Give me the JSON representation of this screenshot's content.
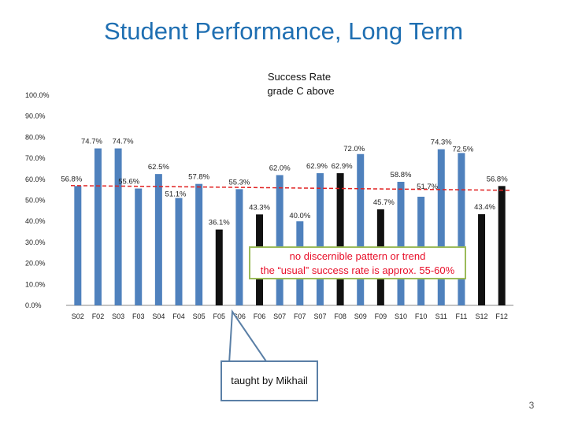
{
  "slide_title": "Student Performance, Long Term",
  "page_number": "3",
  "note": {
    "line1": "no discernible pattern or trend",
    "line2": "the “usual” success rate is approx. 55-60%"
  },
  "callout": "taught by Mikhail",
  "colors": {
    "regular": "#4f81bd",
    "mikhail": "#111111",
    "avg_line": "#e02020",
    "note_border": "#9bbb59"
  },
  "chart_data": {
    "type": "bar",
    "title_line1": "Success Rate",
    "title_line2": "grade C above",
    "categories": [
      "S02",
      "F02",
      "S03",
      "F03",
      "S04",
      "F04",
      "S05",
      "F05",
      "S06",
      "F06",
      "S07",
      "F07",
      "S07",
      "F08",
      "S09",
      "F09",
      "S10",
      "F10",
      "S11",
      "F11",
      "S12",
      "F12"
    ],
    "values": [
      56.8,
      74.7,
      74.7,
      55.6,
      62.5,
      51.1,
      57.8,
      36.1,
      55.3,
      43.3,
      62.0,
      40.0,
      62.9,
      62.9,
      72.0,
      45.7,
      58.8,
      51.7,
      74.3,
      72.5,
      43.4,
      56.8
    ],
    "labels": [
      "56.8%",
      "74.7%",
      "74.7%",
      "55.6%",
      "62.5%",
      "51.1%",
      "57.8%",
      "36.1%",
      "55.3%",
      "43.3%",
      "62.0%",
      "40.0%",
      "62.9%",
      "62.9%",
      "72.0%",
      "45.7%",
      "58.8%",
      "51.7%",
      "74.3%",
      "72.5%",
      "43.4%",
      "56.8%"
    ],
    "taught_by_mikhail": [
      false,
      false,
      false,
      false,
      false,
      false,
      false,
      true,
      false,
      true,
      false,
      false,
      false,
      true,
      false,
      true,
      false,
      false,
      false,
      false,
      true,
      true
    ],
    "y_ticks": [
      "0.0%",
      "10.0%",
      "20.0%",
      "30.0%",
      "40.0%",
      "50.0%",
      "60.0%",
      "70.0%",
      "80.0%",
      "90.0%",
      "100.0%"
    ],
    "ylim": [
      0,
      100
    ],
    "reference_line": 57.0,
    "grid": false
  }
}
